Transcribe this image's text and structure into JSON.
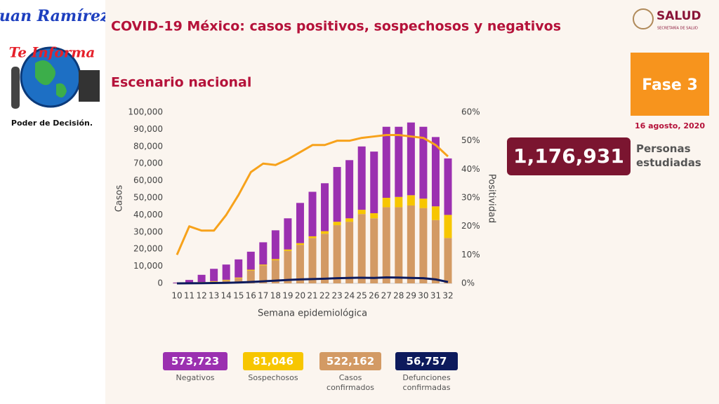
{
  "logo": {
    "line1": "Juan Ramírez",
    "line2": "Te Informa",
    "line3": "Poder de Decisión."
  },
  "brand": {
    "name": "SALUD",
    "sub": "SECRETARÍA DE SALUD"
  },
  "phase": "Fase 3",
  "date": "16 agosto, 2020",
  "studied": {
    "value": "1,176,931",
    "label": "Personas estudiadas"
  },
  "chart_data": {
    "type": "bar",
    "title": "COVID-19 México: casos positivos, sospechosos y negativos",
    "subtitle": "Escenario nacional",
    "x_label": "Semana epidemiológica",
    "y_label": "Casos",
    "y2_label": "Positividad",
    "categories": [
      "10",
      "11",
      "12",
      "13",
      "14",
      "15",
      "16",
      "17",
      "18",
      "19",
      "20",
      "21",
      "22",
      "23",
      "24",
      "25",
      "26",
      "27",
      "28",
      "29",
      "30",
      "31",
      "32"
    ],
    "ylim": [
      0,
      100000
    ],
    "yticks": [
      0,
      {
        "value": 10000,
        "label": "10,000"
      },
      {
        "value": 20000,
        "label": "20,000"
      },
      {
        "value": 30000,
        "label": "30,000"
      },
      {
        "value": 40000,
        "label": "40,000"
      },
      {
        "value": 50000,
        "label": "50,000"
      },
      {
        "value": 60000,
        "label": "60,000"
      },
      {
        "value": 70000,
        "label": "70,000"
      },
      {
        "value": 80000,
        "label": "80,000"
      },
      {
        "value": 90000,
        "label": "90,000"
      },
      {
        "value": 100000,
        "label": "100,000"
      }
    ],
    "y2lim": [
      0,
      60
    ],
    "y2ticks": [
      {
        "value": 0,
        "label": "0%"
      },
      {
        "value": 10,
        "label": "10%"
      },
      {
        "value": 20,
        "label": "20%"
      },
      {
        "value": 30,
        "label": "30%"
      },
      {
        "value": 40,
        "label": "40%"
      },
      {
        "value": 50,
        "label": "50%"
      },
      {
        "value": 60,
        "label": "60%"
      }
    ],
    "series": [
      {
        "name": "Negativos",
        "total": "573,723",
        "color": "#9b30b0",
        "kind": "bar",
        "values": [
          400,
          1600,
          4200,
          7200,
          8900,
          10600,
          10500,
          13000,
          16800,
          18200,
          23500,
          26000,
          28000,
          32000,
          34000,
          37000,
          36000,
          41500,
          41000,
          42500,
          42000,
          40500,
          33000
        ]
      },
      {
        "name": "Sospechosos",
        "total": "81,046",
        "color": "#f7c600",
        "kind": "bar",
        "values": [
          0,
          100,
          200,
          300,
          300,
          400,
          500,
          500,
          700,
          800,
          1000,
          1000,
          1500,
          2000,
          2000,
          2500,
          3000,
          5500,
          6000,
          6000,
          5500,
          8000,
          13500
        ]
      },
      {
        "name": "Casos confirmados",
        "total": "522,162",
        "color": "#d39a64",
        "kind": "bar",
        "values": [
          100,
          300,
          600,
          1000,
          1800,
          3000,
          7500,
          10500,
          13500,
          19000,
          22500,
          26500,
          29000,
          34000,
          36000,
          40500,
          38000,
          44500,
          44500,
          45500,
          44000,
          37000,
          26500
        ]
      },
      {
        "name": "Defunciones confirmadas",
        "total": "56,757",
        "color": "#0d1a5c",
        "kind": "line",
        "values": [
          0,
          50,
          100,
          200,
          300,
          500,
          800,
          1200,
          1600,
          2000,
          2300,
          2500,
          2700,
          3000,
          3200,
          3300,
          3200,
          3500,
          3400,
          3200,
          3000,
          2300,
          800
        ]
      },
      {
        "color": "#f7a21b",
        "kind": "line",
        "axis": "y2",
        "values": [
          10,
          20,
          18.5,
          18.5,
          24,
          31,
          39,
          42,
          41.5,
          43.5,
          46,
          48.5,
          48.5,
          50,
          50,
          51,
          51.5,
          52,
          52,
          51.5,
          51,
          48.5,
          44.5
        ]
      }
    ]
  }
}
